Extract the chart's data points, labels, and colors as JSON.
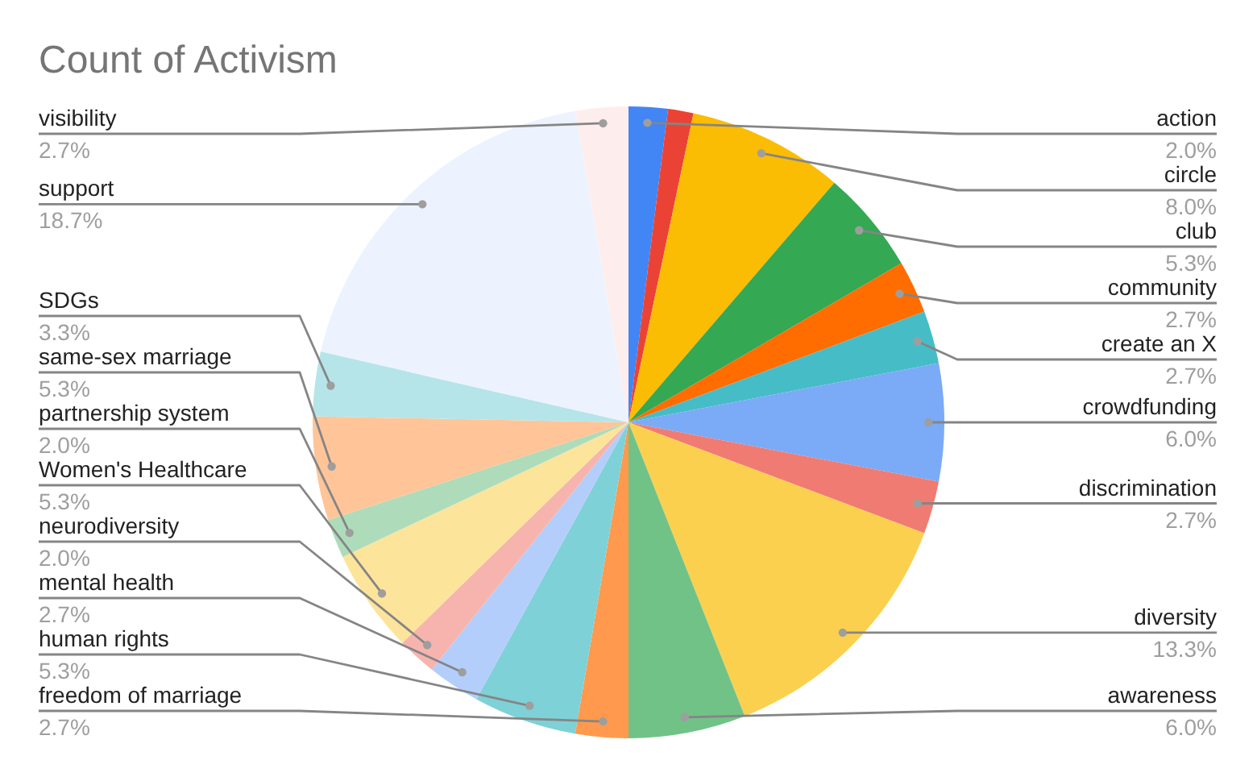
{
  "chart_data": {
    "type": "pie",
    "title": "Count of Activism",
    "categories": [
      "action",
      null,
      "circle",
      "club",
      "community",
      "create an X",
      "crowdfunding",
      "discrimination",
      "diversity",
      "awareness",
      "freedom of marriage",
      "human rights",
      "mental health",
      "neurodiversity",
      "Women's Healthcare",
      "partnership system",
      "same-sex marriage",
      "SDGs",
      "support",
      "visibility"
    ],
    "values": [
      2.0,
      1.3,
      8.0,
      5.3,
      2.7,
      2.7,
      6.0,
      2.7,
      13.3,
      6.0,
      2.7,
      5.3,
      2.7,
      2.0,
      5.3,
      2.0,
      5.3,
      3.3,
      18.7,
      2.7
    ],
    "value_labels": [
      "2.0%",
      null,
      "8.0%",
      "5.3%",
      "2.7%",
      "2.7%",
      "6.0%",
      "2.7%",
      "13.3%",
      "6.0%",
      "2.7%",
      "5.3%",
      "2.7%",
      "2.0%",
      "5.3%",
      "2.0%",
      "5.3%",
      "3.3%",
      "18.7%",
      "2.7%"
    ],
    "colors": [
      "#4285f4",
      "#ea4335",
      "#fbbc04",
      "#34a853",
      "#ff6d01",
      "#46bdc6",
      "#7baaf7",
      "#f07b72",
      "#fcd04f",
      "#71c287",
      "#ff994d",
      "#7ed1d7",
      "#b3cefb",
      "#f7b4ae",
      "#fde49b",
      "#aedcba",
      "#ffc599",
      "#b5e5e8",
      "#ecf3fe",
      "#fdeeed"
    ]
  }
}
